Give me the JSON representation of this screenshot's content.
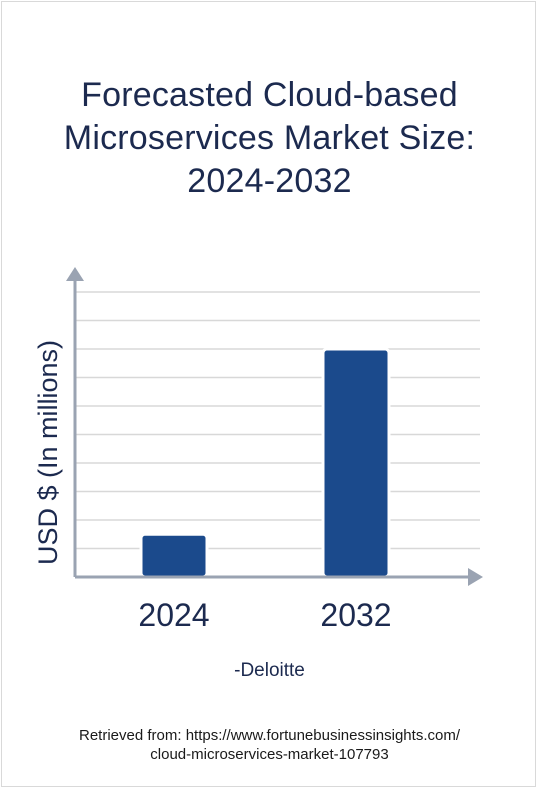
{
  "chart_data": {
    "type": "bar",
    "title": "Forecasted Cloud-based Microservices Market Size: 2024-2032",
    "title_lines": [
      "Forecasted Cloud-based",
      "Microservices Market Size:",
      "2024-2032"
    ],
    "categories": [
      "2024",
      "2032"
    ],
    "values": [
      1.5,
      8.0
    ],
    "ylabel": "USD $ (In millions)",
    "xlabel": "",
    "ylim": [
      0,
      10
    ],
    "grid": true,
    "legend": "none",
    "bar_color": "#1b4a8c",
    "axis_color": "#9aa3b2",
    "grid_color": "#d8d8d8"
  },
  "source_note": "-Deloitte",
  "retrieved": {
    "line1": "Retrieved from: https://www.fortunebusinessinsights.com/",
    "line2": "cloud-microservices-market-107793"
  }
}
